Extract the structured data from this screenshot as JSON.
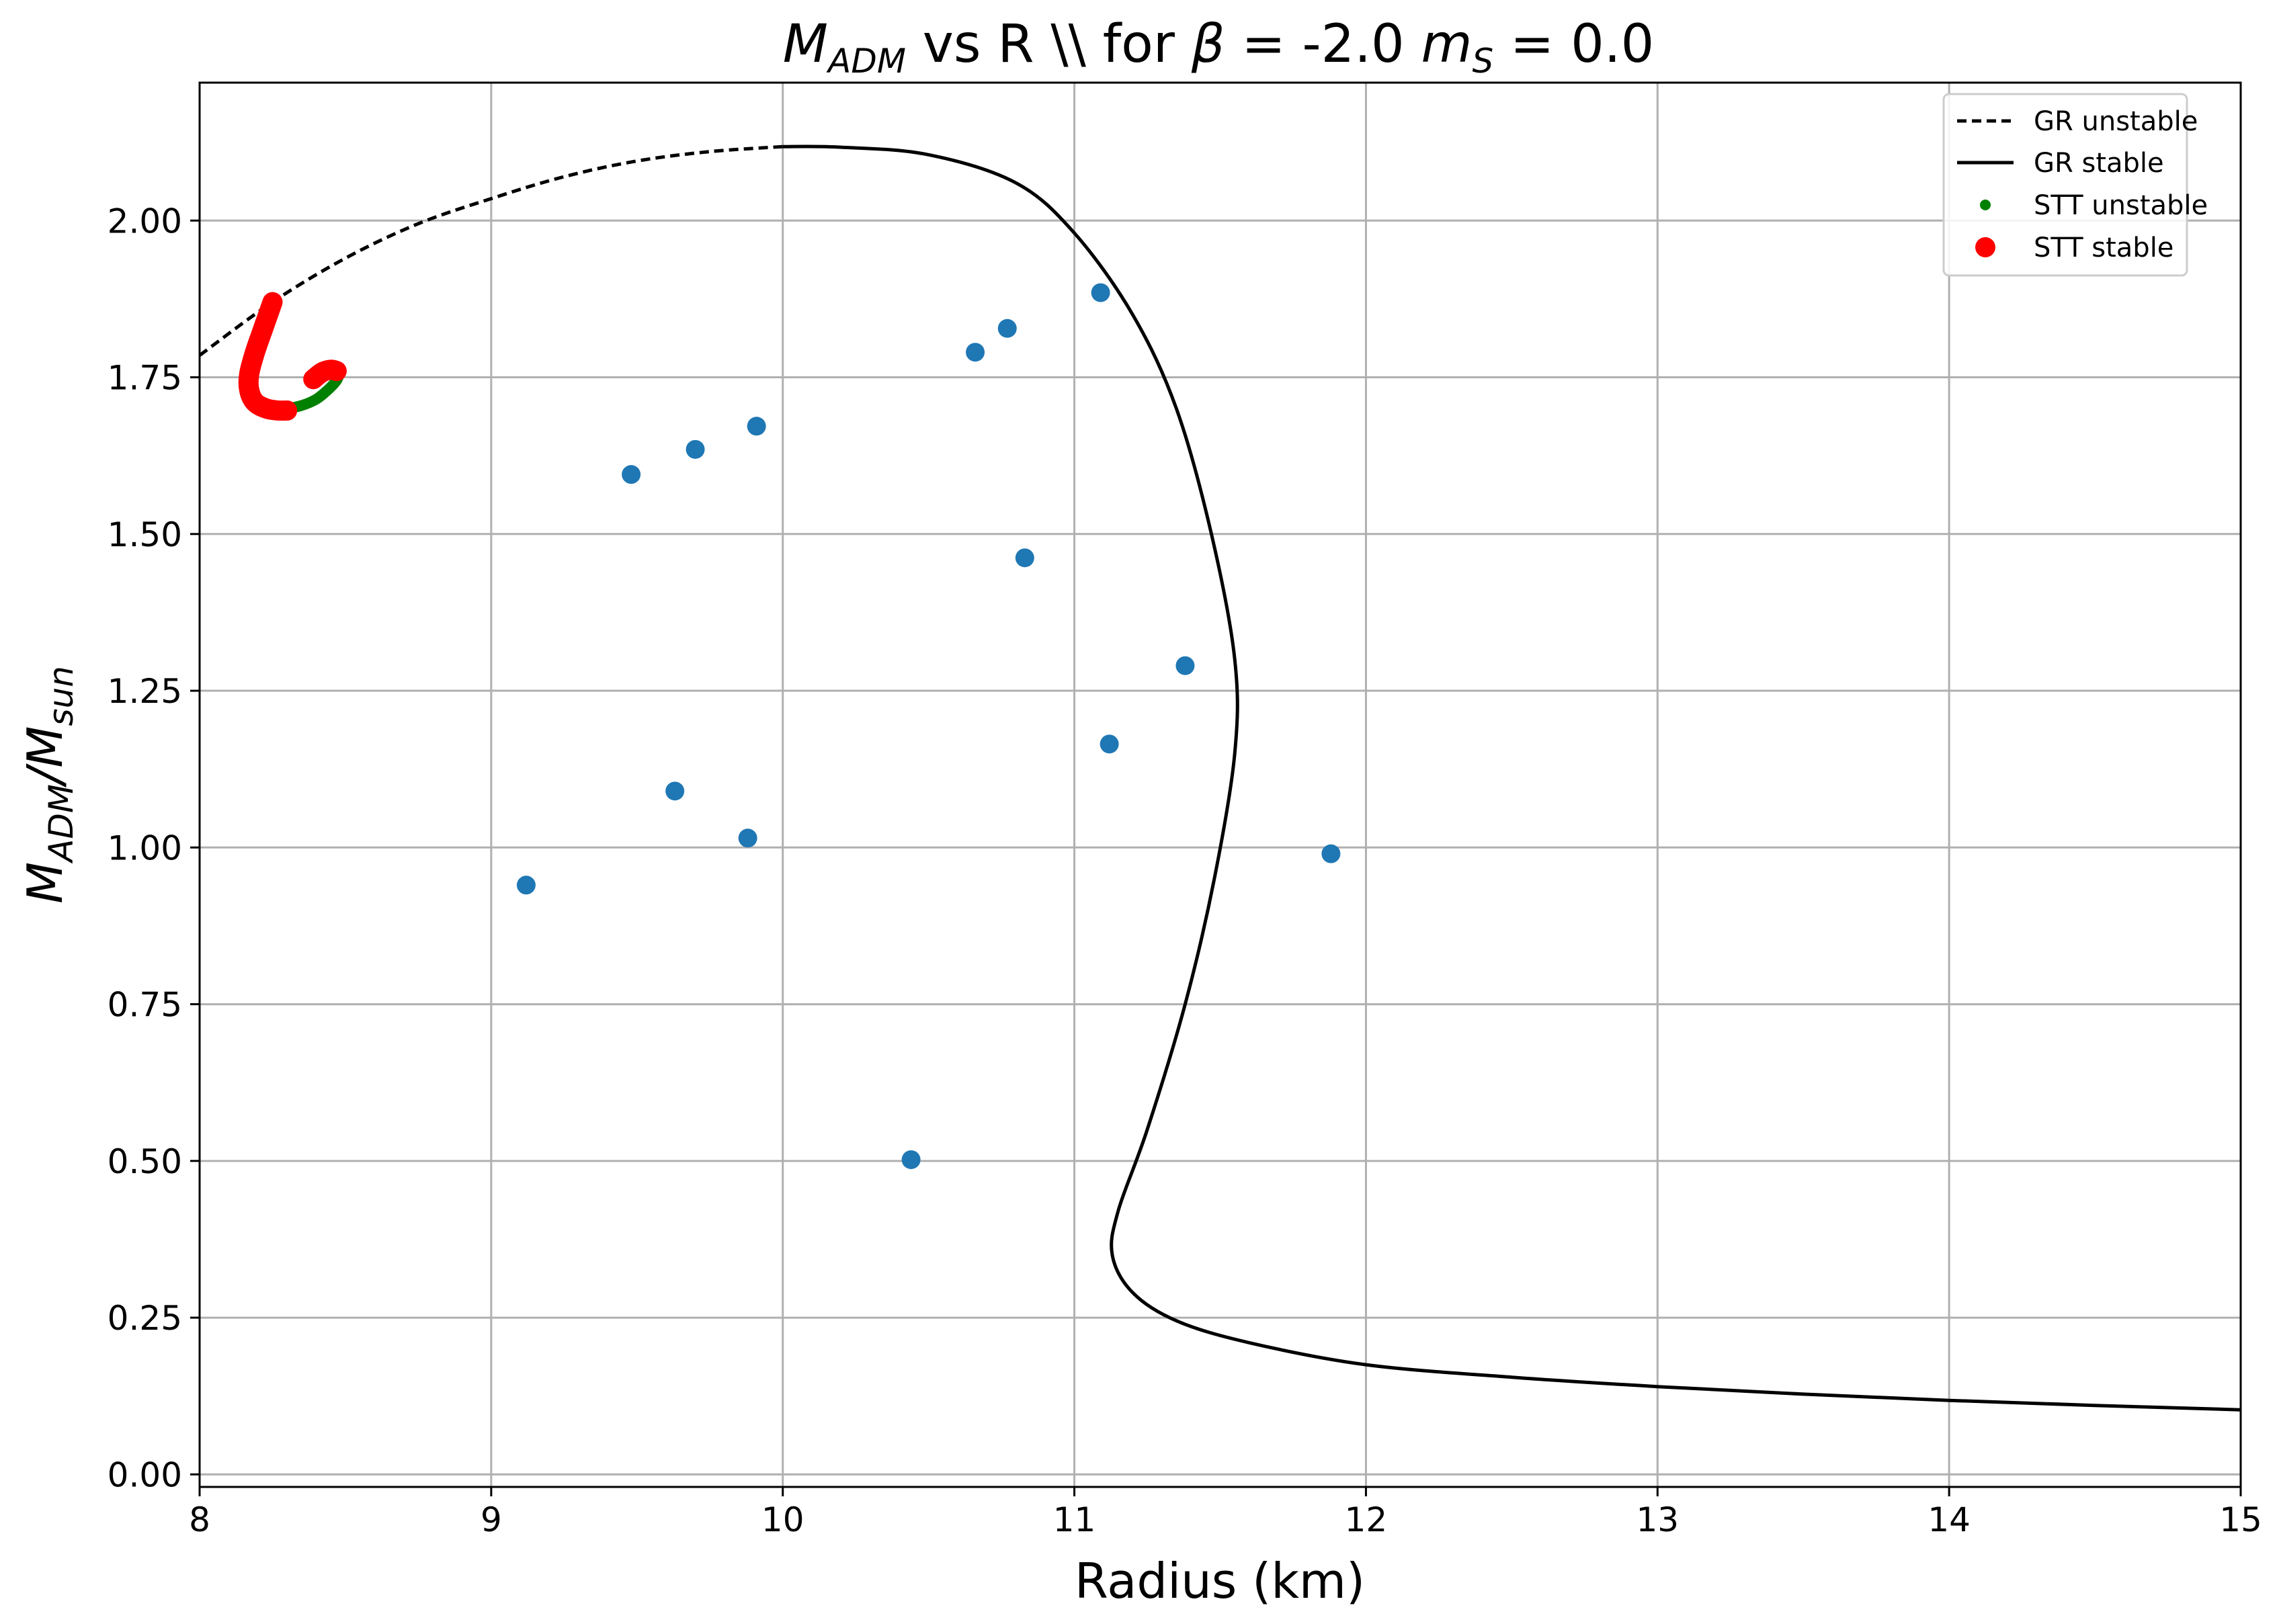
{
  "figure": {
    "title_main": "vs R \\\\ for",
    "title_madm": "M",
    "title_madm_sub": "ADM",
    "title_beta_symbol": "β",
    "title_beta_value": " = -2.0 ",
    "title_ms": "m",
    "title_ms_sub": "S",
    "title_ms_value": " = 0.0"
  },
  "chart_data": {
    "type": "scatter",
    "xlabel": "Radius (km)",
    "ylabel_main": "M",
    "ylabel_sub1": "ADM",
    "ylabel_slash": "/M",
    "ylabel_sub2": "sun",
    "xlim": [
      8,
      15
    ],
    "ylim": [
      -0.02,
      2.22
    ],
    "grid": true,
    "legend_position": "top-right",
    "x_ticks": [
      8,
      9,
      10,
      11,
      12,
      13,
      14,
      15
    ],
    "x_tick_labels": [
      "8",
      "9",
      "10",
      "11",
      "12",
      "13",
      "14",
      "15"
    ],
    "y_ticks": [
      0.0,
      0.25,
      0.5,
      0.75,
      1.0,
      1.25,
      1.5,
      1.75,
      2.0
    ],
    "y_tick_labels": [
      "0.00",
      "0.25",
      "0.50",
      "0.75",
      "1.00",
      "1.25",
      "1.50",
      "1.75",
      "2.00"
    ],
    "colors": {
      "gr": "#000000",
      "stt_unstable": "#008000",
      "stt_stable": "#ff0000",
      "data_points": "#1f77b4",
      "grid": "#b0b0b0"
    },
    "series": [
      {
        "name": "GR unstable",
        "style": "dashed-line",
        "points": [
          [
            8.0,
            1.785
          ],
          [
            8.25,
            1.87
          ],
          [
            8.5,
            1.94
          ],
          [
            8.75,
            1.995
          ],
          [
            9.0,
            2.035
          ],
          [
            9.25,
            2.07
          ],
          [
            9.5,
            2.095
          ],
          [
            9.75,
            2.11
          ],
          [
            10.0,
            2.118
          ]
        ]
      },
      {
        "name": "GR stable",
        "style": "solid-line",
        "points": [
          [
            10.0,
            2.118
          ],
          [
            10.2,
            2.117
          ],
          [
            10.5,
            2.105
          ],
          [
            10.8,
            2.06
          ],
          [
            11.0,
            1.98
          ],
          [
            11.2,
            1.85
          ],
          [
            11.35,
            1.7
          ],
          [
            11.47,
            1.5
          ],
          [
            11.55,
            1.3
          ],
          [
            11.55,
            1.15
          ],
          [
            11.48,
            0.95
          ],
          [
            11.38,
            0.75
          ],
          [
            11.25,
            0.55
          ],
          [
            11.15,
            0.42
          ],
          [
            11.13,
            0.35
          ],
          [
            11.2,
            0.29
          ],
          [
            11.35,
            0.245
          ],
          [
            11.6,
            0.21
          ],
          [
            12.0,
            0.175
          ],
          [
            12.5,
            0.155
          ],
          [
            13.0,
            0.14
          ],
          [
            13.5,
            0.128
          ],
          [
            14.0,
            0.118
          ],
          [
            14.5,
            0.11
          ],
          [
            15.0,
            0.103
          ]
        ]
      },
      {
        "name": "STT unstable",
        "style": "thick-dots",
        "points": [
          [
            8.3,
            1.7
          ],
          [
            8.35,
            1.705
          ],
          [
            8.4,
            1.715
          ],
          [
            8.44,
            1.73
          ],
          [
            8.47,
            1.745
          ],
          [
            8.48,
            1.757
          ]
        ]
      },
      {
        "name": "STT stable",
        "style": "thick-dots",
        "segments": [
          [
            [
              8.25,
              1.87
            ],
            [
              8.22,
              1.83
            ],
            [
              8.19,
              1.79
            ],
            [
              8.17,
              1.755
            ],
            [
              8.17,
              1.73
            ],
            [
              8.19,
              1.71
            ],
            [
              8.23,
              1.7
            ],
            [
              8.27,
              1.697
            ],
            [
              8.3,
              1.697
            ]
          ],
          [
            [
              8.39,
              1.747
            ],
            [
              8.42,
              1.758
            ],
            [
              8.45,
              1.762
            ],
            [
              8.47,
              1.76
            ]
          ]
        ]
      },
      {
        "style": "scatter",
        "points": [
          [
            9.12,
            0.94
          ],
          [
            9.48,
            1.595
          ],
          [
            9.63,
            1.09
          ],
          [
            9.7,
            1.635
          ],
          [
            9.88,
            1.015
          ],
          [
            9.91,
            1.672
          ],
          [
            10.44,
            0.502
          ],
          [
            10.66,
            1.79
          ],
          [
            10.77,
            1.828
          ],
          [
            10.83,
            1.462
          ],
          [
            11.09,
            1.885
          ],
          [
            11.12,
            1.165
          ],
          [
            11.38,
            1.29
          ],
          [
            11.88,
            0.99
          ]
        ]
      }
    ]
  }
}
